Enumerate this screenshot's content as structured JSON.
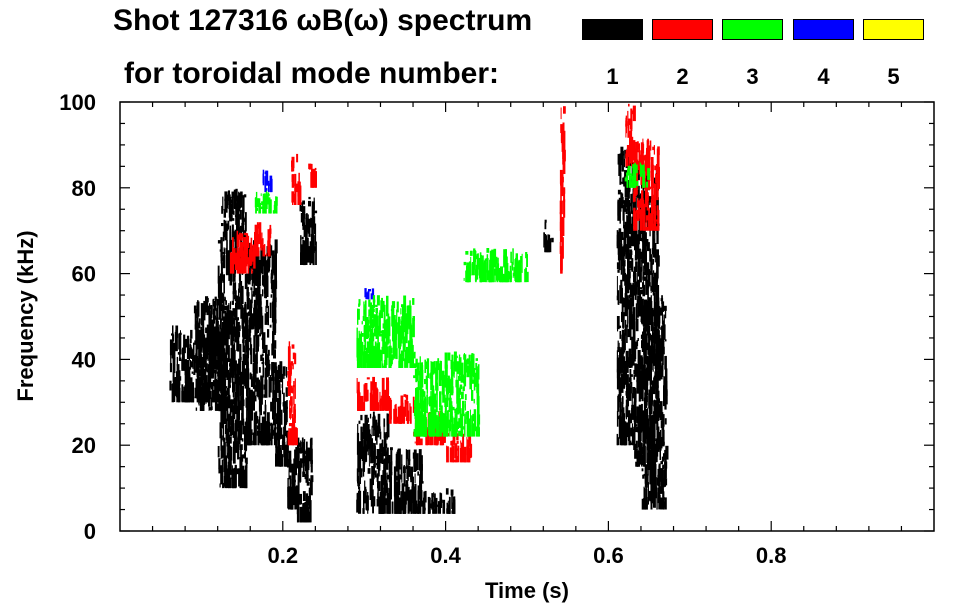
{
  "header": {
    "title_line1": "Shot 127316 ωB(ω) spectrum",
    "title_line2": "for toroidal mode number:"
  },
  "legend": [
    {
      "label": "1",
      "color": "#000000"
    },
    {
      "label": "2",
      "color": "#ff0000"
    },
    {
      "label": "3",
      "color": "#00ff00"
    },
    {
      "label": "4",
      "color": "#0000ff"
    },
    {
      "label": "5",
      "color": "#ffff00"
    }
  ],
  "chart_data": {
    "type": "heatmap",
    "title": "Shot 127316 ωB(ω) spectrum",
    "xlabel": "Time (s)",
    "ylabel": "Frequency (kHz)",
    "xlim": [
      0.0,
      1.0
    ],
    "ylim": [
      0,
      100
    ],
    "x_ticks": [
      0.2,
      0.4,
      0.6,
      0.8
    ],
    "x_tick_labels": [
      "0.2",
      "0.4",
      "0.6",
      "0.8"
    ],
    "y_ticks": [
      0,
      20,
      40,
      60,
      80,
      100
    ],
    "y_tick_labels": [
      "0",
      "20",
      "40",
      "60",
      "80",
      "100"
    ],
    "series": [
      {
        "mode": 1,
        "name": "n=1",
        "color": "#000000",
        "regions": [
          {
            "t0": 0.06,
            "t1": 0.12,
            "f0": 30,
            "f1": 48
          },
          {
            "t0": 0.09,
            "t1": 0.13,
            "f0": 28,
            "f1": 55
          },
          {
            "t0": 0.12,
            "t1": 0.155,
            "f0": 10,
            "f1": 80
          },
          {
            "t0": 0.155,
            "t1": 0.19,
            "f0": 20,
            "f1": 68
          },
          {
            "t0": 0.19,
            "t1": 0.205,
            "f0": 15,
            "f1": 40
          },
          {
            "t0": 0.205,
            "t1": 0.215,
            "f0": 5,
            "f1": 20
          },
          {
            "t0": 0.215,
            "t1": 0.235,
            "f0": 2,
            "f1": 22
          },
          {
            "t0": 0.22,
            "t1": 0.24,
            "f0": 62,
            "f1": 78
          },
          {
            "t0": 0.29,
            "t1": 0.33,
            "f0": 4,
            "f1": 28
          },
          {
            "t0": 0.33,
            "t1": 0.37,
            "f0": 4,
            "f1": 20
          },
          {
            "t0": 0.37,
            "t1": 0.41,
            "f0": 4,
            "f1": 10
          },
          {
            "t0": 0.52,
            "t1": 0.53,
            "f0": 65,
            "f1": 73
          },
          {
            "t0": 0.61,
            "t1": 0.63,
            "f0": 20,
            "f1": 90
          },
          {
            "t0": 0.63,
            "t1": 0.66,
            "f0": 15,
            "f1": 85
          },
          {
            "t0": 0.64,
            "t1": 0.67,
            "f0": 5,
            "f1": 55
          }
        ]
      },
      {
        "mode": 2,
        "name": "n=2",
        "color": "#ff0000",
        "regions": [
          {
            "t0": 0.135,
            "t1": 0.165,
            "f0": 60,
            "f1": 70
          },
          {
            "t0": 0.165,
            "t1": 0.185,
            "f0": 64,
            "f1": 72
          },
          {
            "t0": 0.21,
            "t1": 0.22,
            "f0": 76,
            "f1": 88
          },
          {
            "t0": 0.23,
            "t1": 0.24,
            "f0": 80,
            "f1": 86
          },
          {
            "t0": 0.205,
            "t1": 0.215,
            "f0": 20,
            "f1": 45
          },
          {
            "t0": 0.29,
            "t1": 0.33,
            "f0": 28,
            "f1": 36
          },
          {
            "t0": 0.33,
            "t1": 0.36,
            "f0": 25,
            "f1": 32
          },
          {
            "t0": 0.36,
            "t1": 0.4,
            "f0": 20,
            "f1": 28
          },
          {
            "t0": 0.4,
            "t1": 0.43,
            "f0": 16,
            "f1": 23
          },
          {
            "t0": 0.62,
            "t1": 0.63,
            "f0": 85,
            "f1": 100
          },
          {
            "t0": 0.63,
            "t1": 0.66,
            "f0": 70,
            "f1": 92
          },
          {
            "t0": 0.54,
            "t1": 0.545,
            "f0": 60,
            "f1": 100
          }
        ]
      },
      {
        "mode": 3,
        "name": "n=3",
        "color": "#00ff00",
        "regions": [
          {
            "t0": 0.165,
            "t1": 0.195,
            "f0": 74,
            "f1": 80
          },
          {
            "t0": 0.42,
            "t1": 0.5,
            "f0": 58,
            "f1": 66
          },
          {
            "t0": 0.29,
            "t1": 0.36,
            "f0": 38,
            "f1": 55
          },
          {
            "t0": 0.36,
            "t1": 0.44,
            "f0": 22,
            "f1": 42
          },
          {
            "t0": 0.62,
            "t1": 0.65,
            "f0": 80,
            "f1": 86
          }
        ]
      },
      {
        "mode": 4,
        "name": "n=4",
        "color": "#0000ff",
        "regions": [
          {
            "t0": 0.175,
            "t1": 0.185,
            "f0": 79,
            "f1": 85
          },
          {
            "t0": 0.3,
            "t1": 0.31,
            "f0": 54,
            "f1": 57
          }
        ]
      },
      {
        "mode": 5,
        "name": "n=5",
        "color": "#ffff00",
        "regions": []
      }
    ]
  }
}
